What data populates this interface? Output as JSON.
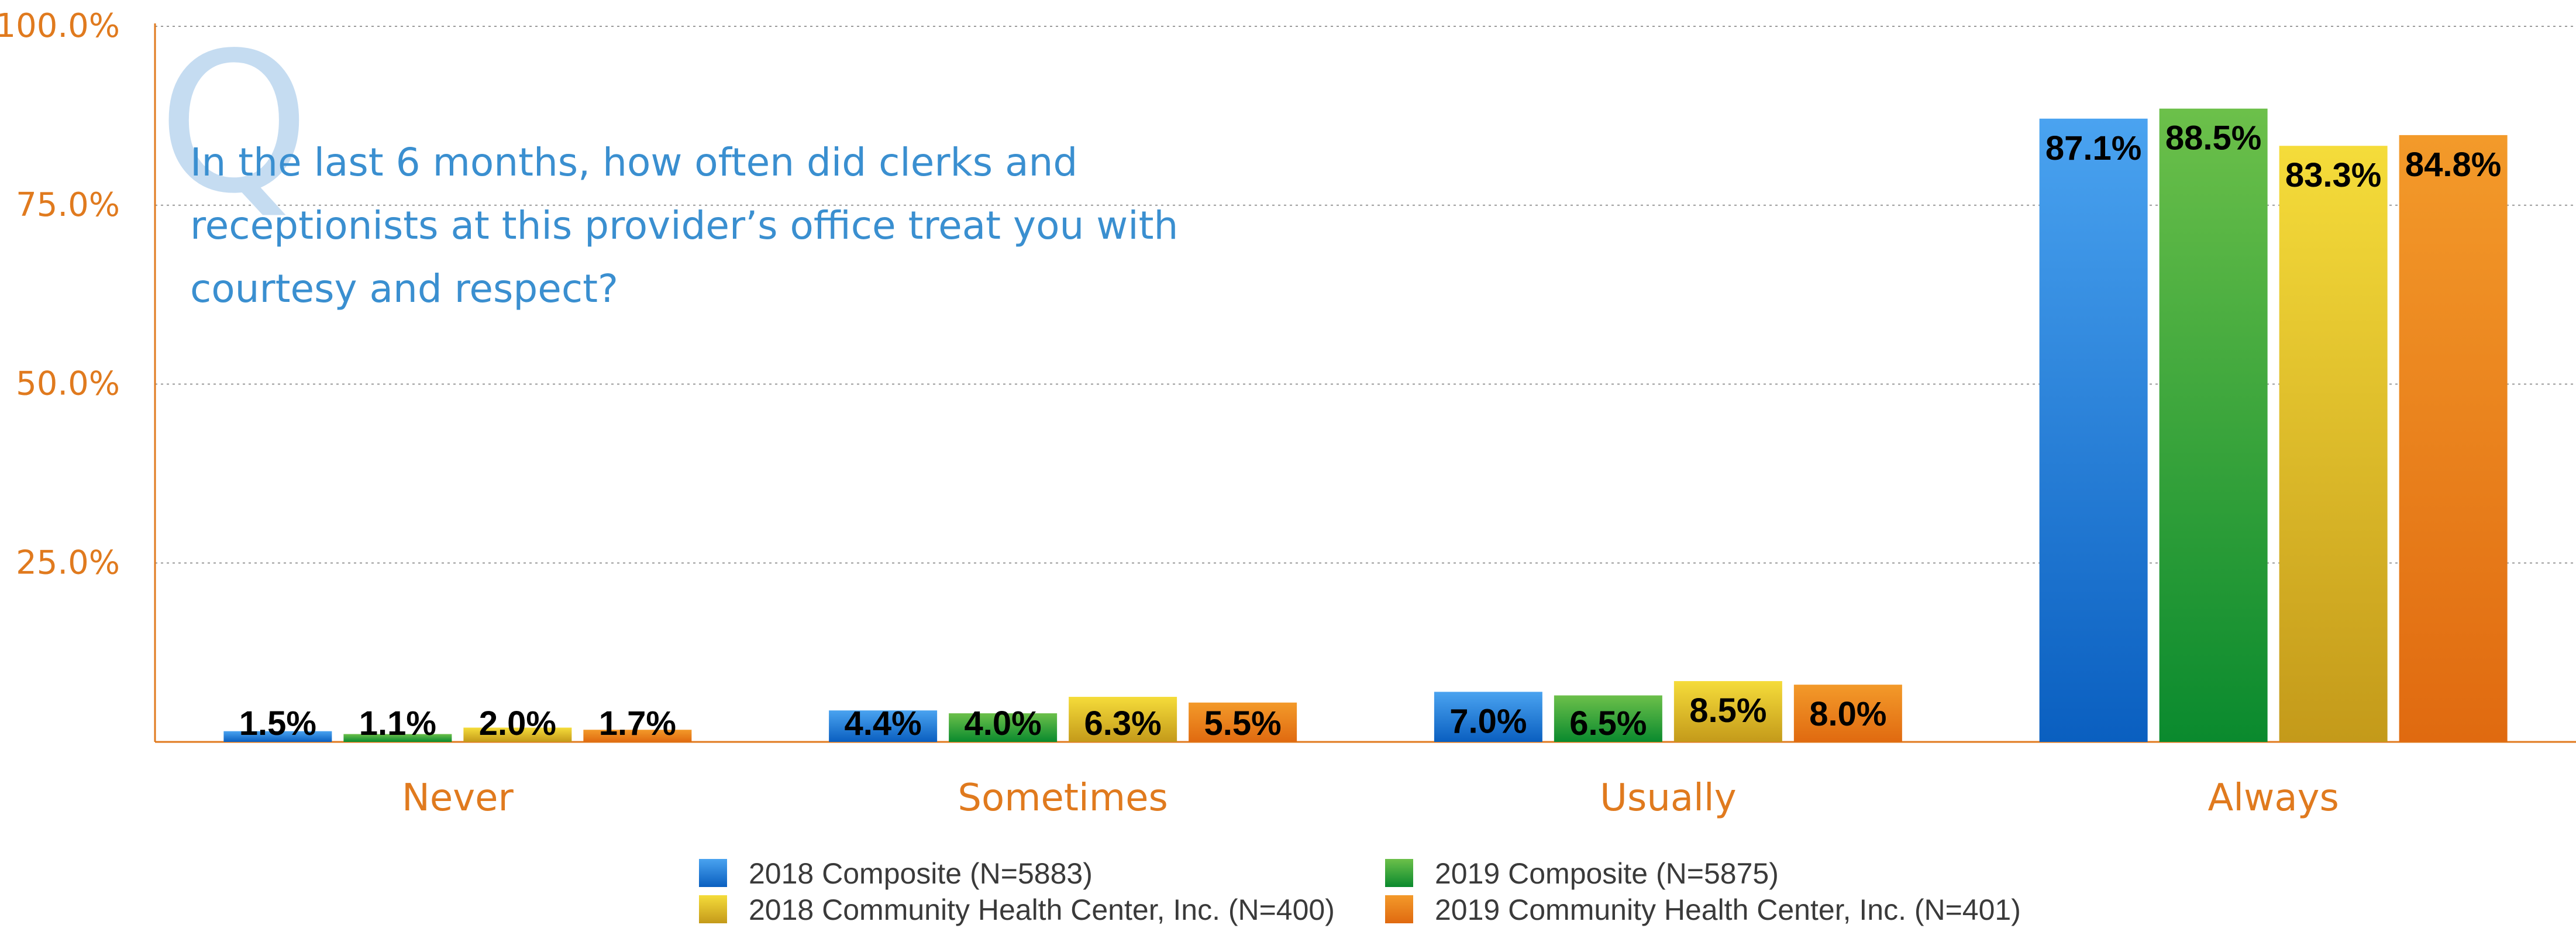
{
  "chart_data": {
    "type": "bar",
    "question_mark": "Q",
    "title_lines": [
      "In the last 6 months, how often did clerks and",
      "receptionists at this provider’s office treat you with",
      "courtesy and respect?"
    ],
    "categories": [
      "Never",
      "Sometimes",
      "Usually",
      "Always"
    ],
    "series": [
      {
        "name": "2018 Composite (N=5883)",
        "values": [
          1.5,
          4.4,
          7.0,
          87.1
        ],
        "color_top": "#4aa3f0",
        "color_bottom": "#0a5fc0"
      },
      {
        "name": "2019 Composite (N=5875)",
        "values": [
          1.1,
          4.0,
          6.5,
          88.5
        ],
        "color_top": "#6cc04a",
        "color_bottom": "#0a8a2e"
      },
      {
        "name": "2018 Community Health Center, Inc. (N=400)",
        "values": [
          2.0,
          6.3,
          8.5,
          83.3
        ],
        "color_top": "#f5dc3a",
        "color_bottom": "#c49a1a"
      },
      {
        "name": "2019 Community Health Center, Inc. (N=401)",
        "values": [
          1.7,
          5.5,
          8.0,
          84.8
        ],
        "color_top": "#f39a2a",
        "color_bottom": "#e06a10"
      }
    ],
    "data_labels": [
      [
        "1.5%",
        "4.4%",
        "7.0%",
        "87.1%"
      ],
      [
        "1.1%",
        "4.0%",
        "6.5%",
        "88.5%"
      ],
      [
        "2.0%",
        "6.3%",
        "8.5%",
        "83.3%"
      ],
      [
        "1.7%",
        "5.5%",
        "8.0%",
        "84.8%"
      ]
    ],
    "yticks": [
      25,
      50,
      75,
      100
    ],
    "ytick_labels": [
      "25.0%",
      "50.0%",
      "75.0%",
      "100.0%"
    ],
    "ylim": [
      0,
      100
    ],
    "grid": true,
    "legend_position": "bottom",
    "axis_color": "#e07a1e"
  }
}
